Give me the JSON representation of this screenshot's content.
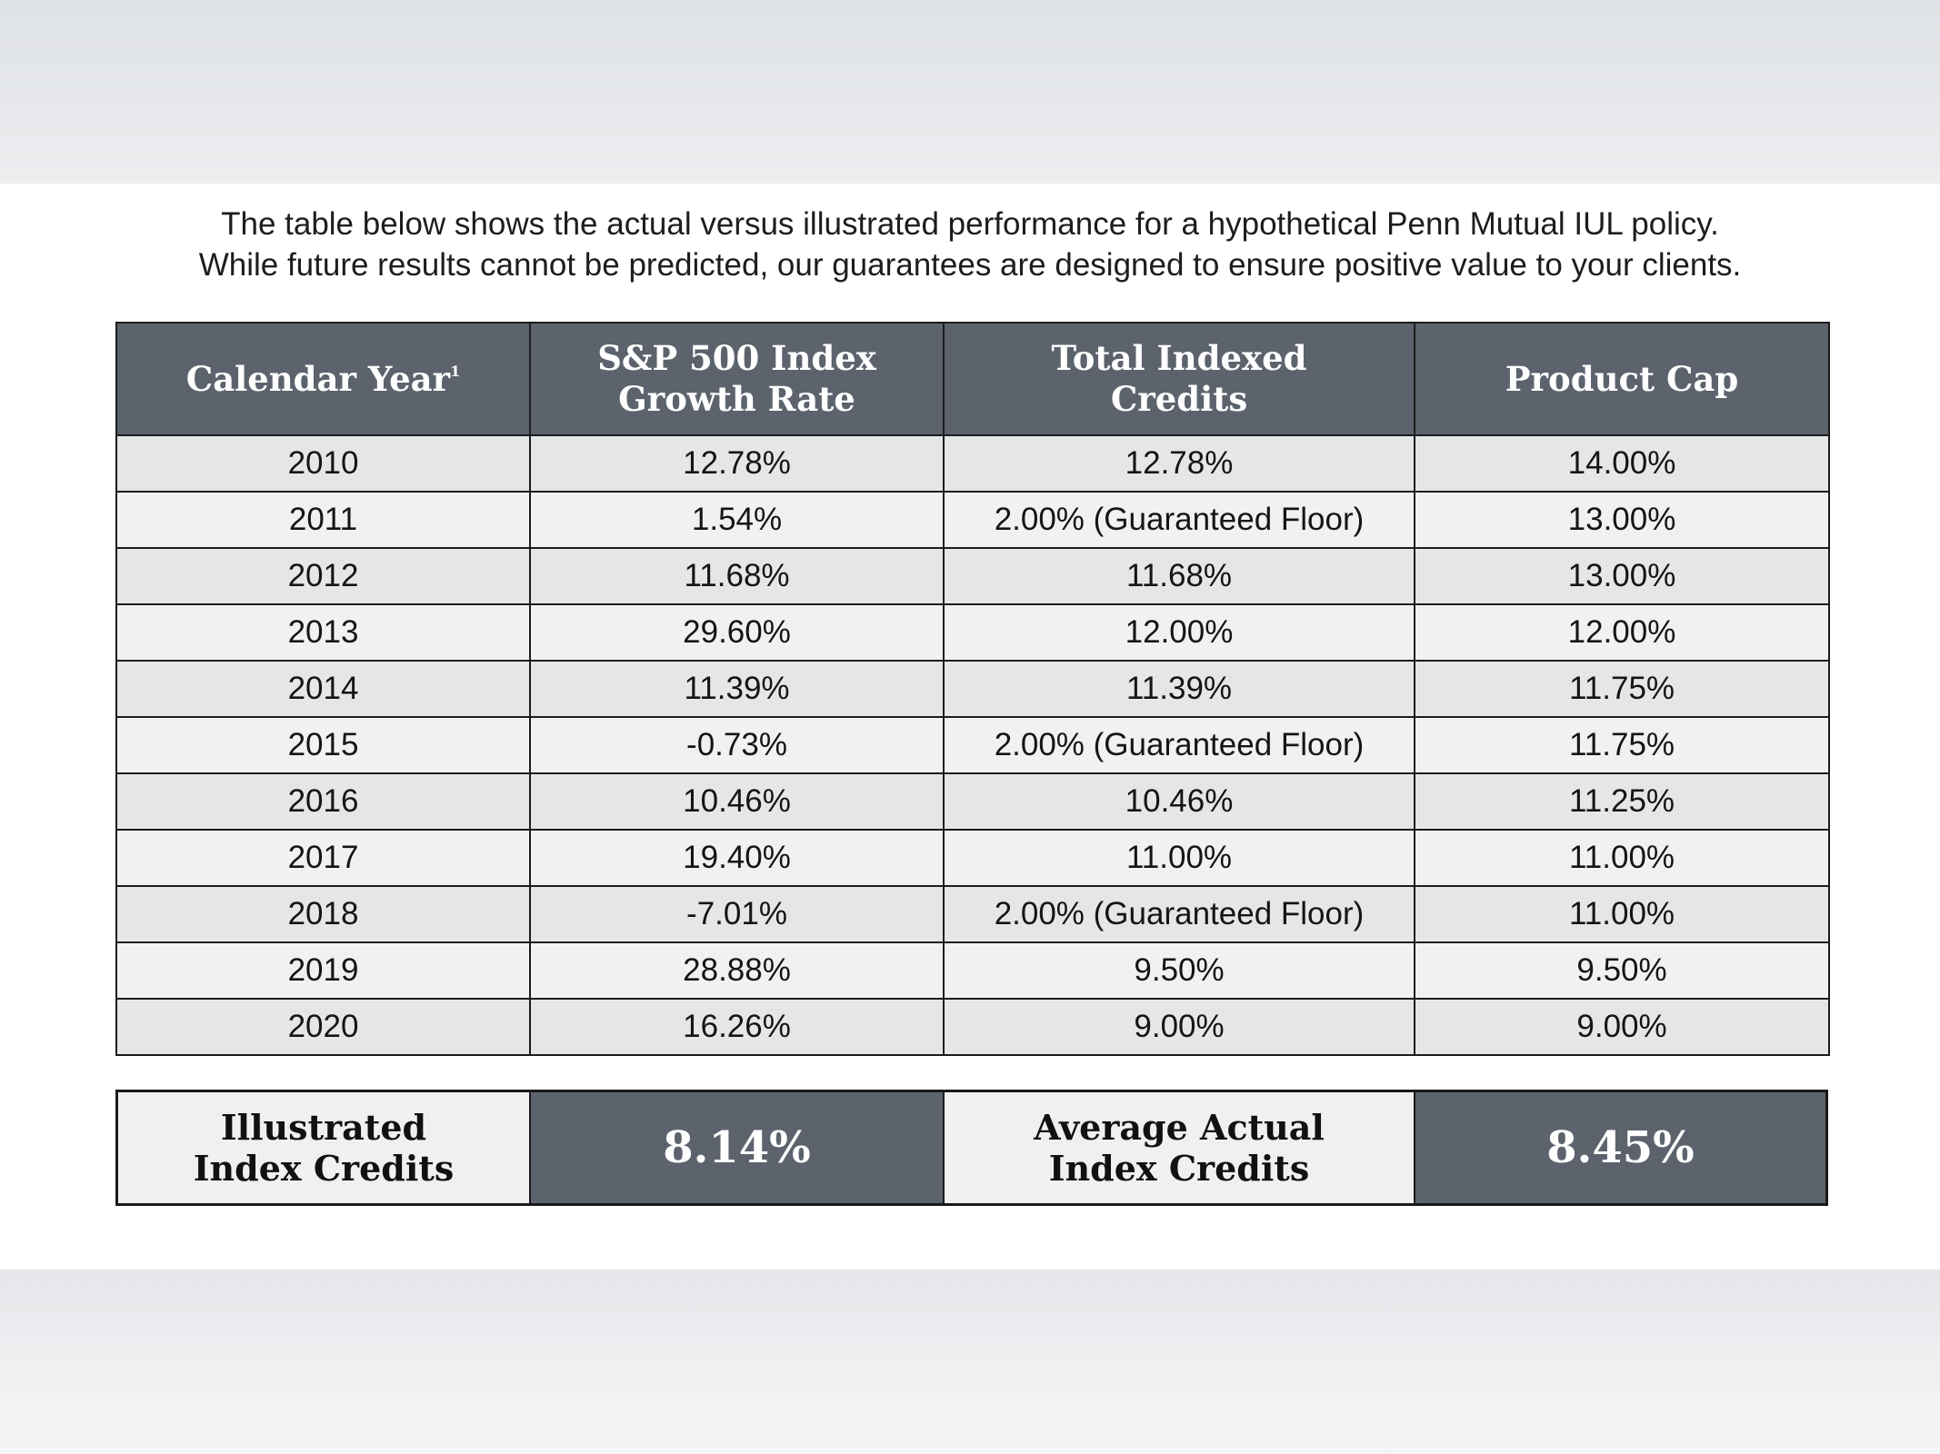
{
  "intro": {
    "line1": "The table below shows the actual versus illustrated performance for a hypothetical Penn Mutual IUL policy.",
    "line2": "While future results cannot be predicted, our guarantees are designed to ensure positive value to your clients."
  },
  "table": {
    "headers": {
      "year": "Calendar Year",
      "year_footnote": "1",
      "sp500": "S&P 500 Index\nGrowth Rate",
      "credits": "Total Indexed\nCredits",
      "cap": "Product Cap"
    },
    "rows": [
      {
        "year": "2010",
        "growth": "12.78%",
        "credits": "12.78%",
        "cap": "14.00%"
      },
      {
        "year": "2011",
        "growth": "1.54%",
        "credits": "2.00% (Guaranteed Floor)",
        "cap": "13.00%"
      },
      {
        "year": "2012",
        "growth": "11.68%",
        "credits": "11.68%",
        "cap": "13.00%"
      },
      {
        "year": "2013",
        "growth": "29.60%",
        "credits": "12.00%",
        "cap": "12.00%"
      },
      {
        "year": "2014",
        "growth": "11.39%",
        "credits": "11.39%",
        "cap": "11.75%"
      },
      {
        "year": "2015",
        "growth": "-0.73%",
        "credits": "2.00% (Guaranteed Floor)",
        "cap": "11.75%"
      },
      {
        "year": "2016",
        "growth": "10.46%",
        "credits": "10.46%",
        "cap": "11.25%"
      },
      {
        "year": "2017",
        "growth": "19.40%",
        "credits": "11.00%",
        "cap": "11.00%"
      },
      {
        "year": "2018",
        "growth": "-7.01%",
        "credits": "2.00% (Guaranteed Floor)",
        "cap": "11.00%"
      },
      {
        "year": "2019",
        "growth": "28.88%",
        "credits": "9.50%",
        "cap": "9.50%"
      },
      {
        "year": "2020",
        "growth": "16.26%",
        "credits": "9.00%",
        "cap": "9.00%"
      }
    ]
  },
  "summary": {
    "illustrated_label": "Illustrated\nIndex Credits",
    "illustrated_value": "8.14%",
    "actual_label": "Average Actual\nIndex Credits",
    "actual_value": "8.45%"
  },
  "colors": {
    "header_bg": "#5c636d",
    "row_odd": "#e5e6e8",
    "row_even": "#f1f1f2",
    "border": "#1c1c1c"
  }
}
